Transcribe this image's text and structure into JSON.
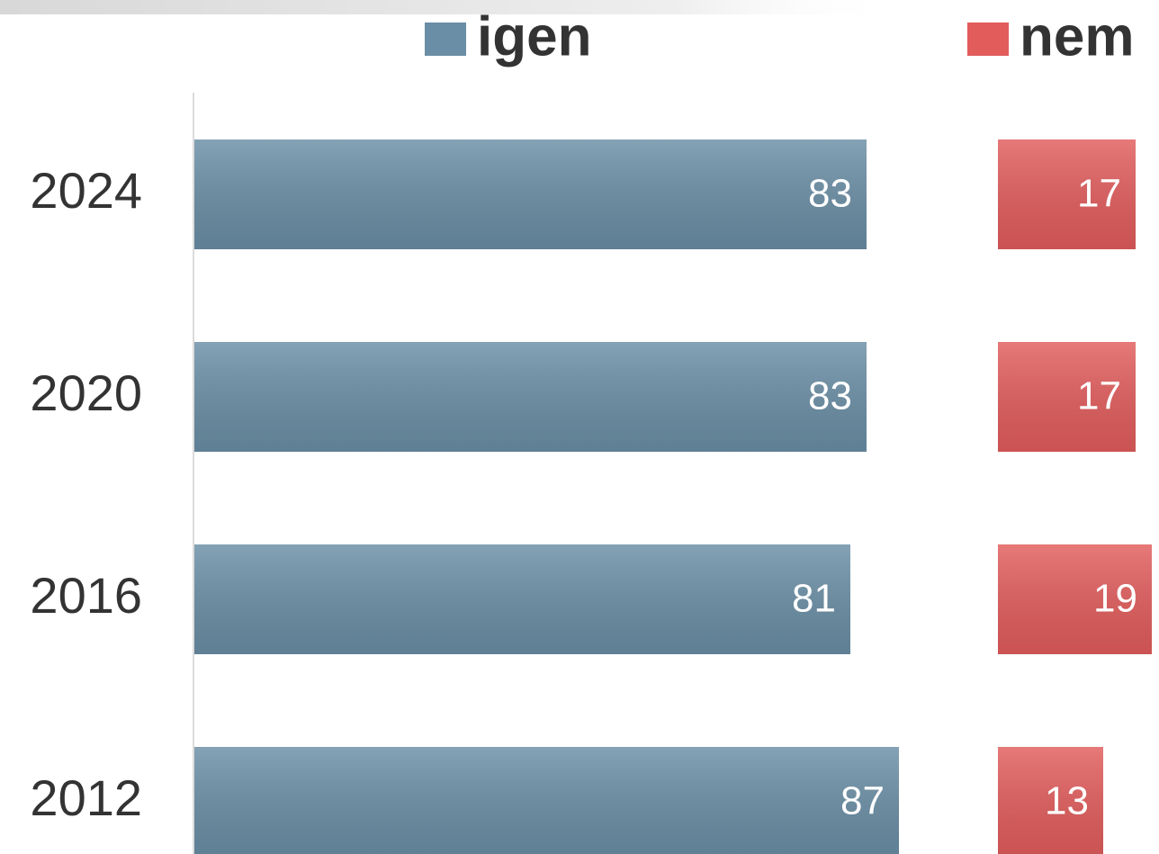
{
  "chart_data": {
    "type": "bar",
    "orientation": "horizontal",
    "categories": [
      "2024",
      "2020",
      "2016",
      "2012"
    ],
    "series": [
      {
        "name": "igen",
        "color": "#6a8ea5",
        "values": [
          83,
          83,
          81,
          87
        ]
      },
      {
        "name": "nem",
        "color": "#e25c5c",
        "values": [
          17,
          17,
          19,
          13
        ]
      }
    ],
    "legend": "top",
    "data_labels": true
  }
}
